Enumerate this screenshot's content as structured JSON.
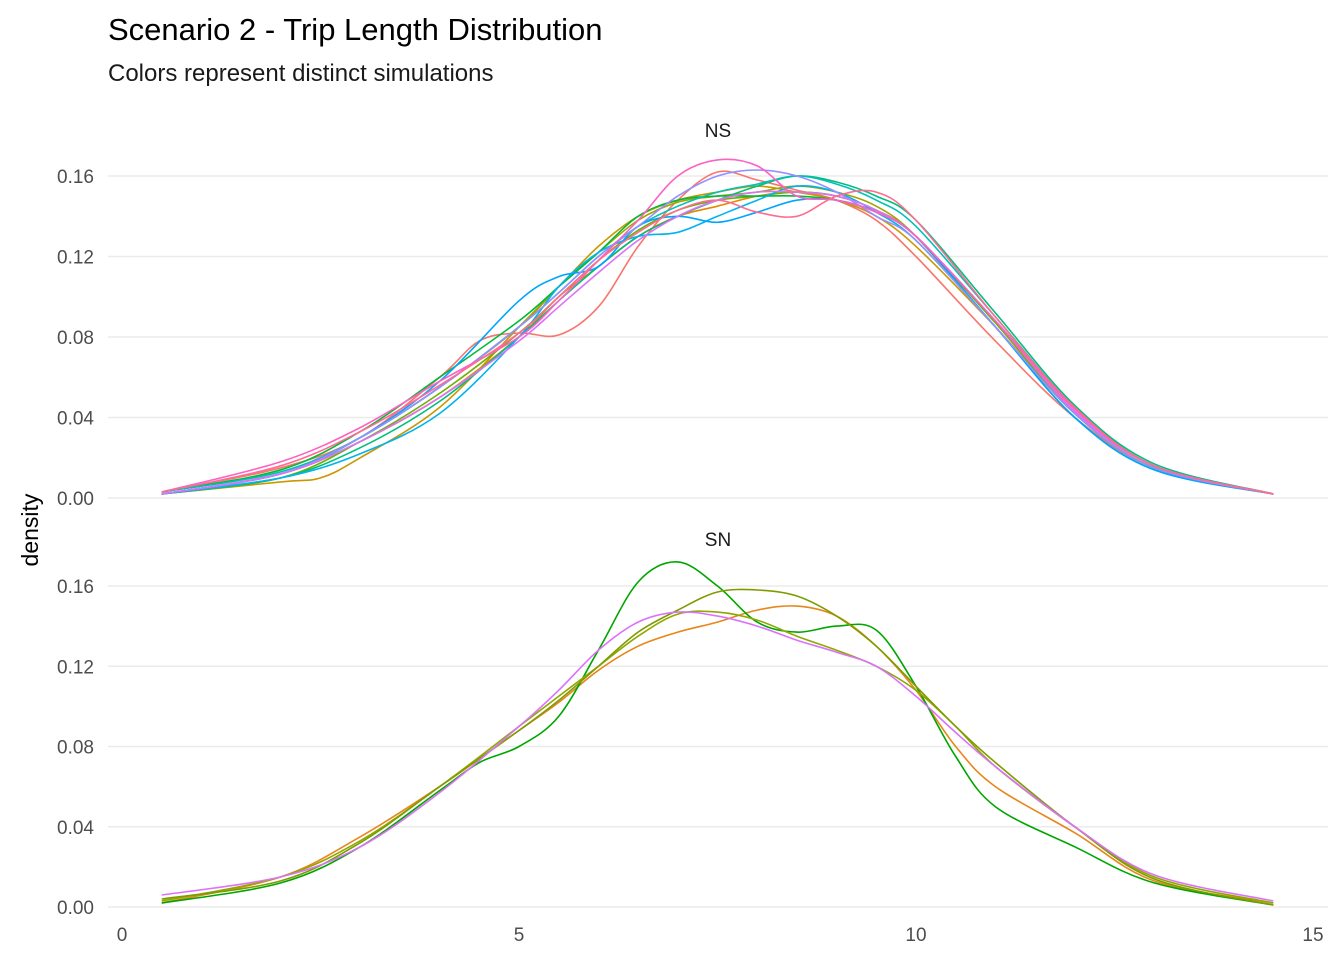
{
  "title": "Scenario 2 - Trip Length Distribution",
  "subtitle": "Colors represent distinct simulations",
  "chart_data": {
    "type": "line",
    "title": "Scenario 2 - Trip Length Distribution",
    "subtitle": "Colors represent distinct simulations",
    "xlabel": "",
    "ylabel": "density",
    "xlim": [
      0,
      15
    ],
    "x_ticks": [
      "0",
      "5",
      "10",
      "15"
    ],
    "y_ticks": [
      "0.00",
      "0.04",
      "0.08",
      "0.12",
      "0.16"
    ],
    "ylim": [
      0,
      0.17
    ],
    "grid": "horizontal",
    "legend": "none",
    "panels": [
      {
        "label": "NS",
        "series": [
          {
            "color": "#F8766D",
            "x": [
              0.5,
              2,
              3,
              4,
              4.5,
              5,
              5.5,
              6,
              6.5,
              7,
              7.5,
              8,
              8.5,
              9,
              9.5,
              10,
              11,
              12,
              13,
              14.5
            ],
            "y": [
              0.003,
              0.015,
              0.03,
              0.06,
              0.078,
              0.082,
              0.081,
              0.095,
              0.125,
              0.148,
              0.162,
              0.158,
              0.153,
              0.148,
              0.138,
              0.12,
              0.078,
              0.04,
              0.015,
              0.002
            ]
          },
          {
            "color": "#E58700",
            "x": [
              0.5,
              2,
              3,
              4,
              5,
              5.5,
              6,
              6.5,
              7,
              7.5,
              8,
              8.5,
              9,
              9.5,
              10,
              11,
              12,
              13,
              14.5
            ],
            "y": [
              0.002,
              0.012,
              0.028,
              0.05,
              0.08,
              0.1,
              0.115,
              0.13,
              0.14,
              0.145,
              0.15,
              0.152,
              0.15,
              0.143,
              0.13,
              0.085,
              0.042,
              0.015,
              0.002
            ]
          },
          {
            "color": "#C99800",
            "x": [
              0.5,
              2,
              2.5,
              3,
              4,
              5,
              5.5,
              6,
              6.5,
              7,
              7.5,
              8,
              8.5,
              9,
              9.5,
              10,
              11,
              12,
              13,
              14.5
            ],
            "y": [
              0.002,
              0.008,
              0.01,
              0.02,
              0.045,
              0.085,
              0.105,
              0.125,
              0.14,
              0.148,
              0.152,
              0.155,
              0.152,
              0.148,
              0.14,
              0.125,
              0.085,
              0.042,
              0.015,
              0.002
            ]
          },
          {
            "color": "#A3A500",
            "x": [
              0.5,
              2,
              3,
              4,
              5,
              5.5,
              6,
              6.5,
              7,
              7.5,
              8,
              8.5,
              9,
              9.5,
              10,
              11,
              12,
              13,
              14.5
            ],
            "y": [
              0.002,
              0.012,
              0.03,
              0.055,
              0.085,
              0.105,
              0.122,
              0.138,
              0.147,
              0.15,
              0.152,
              0.155,
              0.152,
              0.145,
              0.13,
              0.085,
              0.042,
              0.015,
              0.002
            ]
          },
          {
            "color": "#6BB100",
            "x": [
              0.5,
              2,
              3,
              4,
              5,
              5.5,
              6,
              6.5,
              7,
              7.5,
              8,
              8.5,
              9,
              9.5,
              10,
              11,
              12,
              13,
              14.5
            ],
            "y": [
              0.002,
              0.01,
              0.028,
              0.052,
              0.082,
              0.1,
              0.118,
              0.133,
              0.143,
              0.148,
              0.15,
              0.152,
              0.15,
              0.143,
              0.13,
              0.087,
              0.042,
              0.015,
              0.002
            ]
          },
          {
            "color": "#00BA38",
            "x": [
              0.5,
              2,
              3,
              4,
              5,
              5.5,
              6,
              6.5,
              7,
              7.5,
              8,
              8.5,
              9,
              9.5,
              10,
              11,
              12,
              13,
              14.5
            ],
            "y": [
              0.003,
              0.014,
              0.033,
              0.06,
              0.088,
              0.105,
              0.122,
              0.14,
              0.148,
              0.15,
              0.15,
              0.15,
              0.148,
              0.142,
              0.13,
              0.088,
              0.045,
              0.016,
              0.002
            ]
          },
          {
            "color": "#00BF7D",
            "x": [
              0.5,
              2,
              3,
              4,
              5,
              5.5,
              6,
              6.5,
              7,
              7.5,
              8,
              8.5,
              9,
              9.5,
              10,
              11,
              12,
              13,
              14.5
            ],
            "y": [
              0.002,
              0.01,
              0.025,
              0.048,
              0.08,
              0.098,
              0.115,
              0.13,
              0.14,
              0.148,
              0.155,
              0.16,
              0.157,
              0.15,
              0.138,
              0.092,
              0.046,
              0.017,
              0.002
            ]
          },
          {
            "color": "#00C0B8",
            "x": [
              0.5,
              2,
              3,
              4,
              5,
              5.5,
              6,
              6.5,
              7,
              7.5,
              8,
              8.5,
              9,
              9.5,
              10,
              11,
              12,
              13,
              14.5
            ],
            "y": [
              0.003,
              0.013,
              0.03,
              0.055,
              0.085,
              0.102,
              0.12,
              0.135,
              0.145,
              0.152,
              0.156,
              0.16,
              0.156,
              0.148,
              0.135,
              0.09,
              0.045,
              0.016,
              0.002
            ]
          },
          {
            "color": "#00B4EF",
            "x": [
              0.5,
              2,
              3,
              4,
              5,
              5.5,
              6,
              6.5,
              7,
              7.5,
              8,
              8.5,
              9,
              9.5,
              10,
              11,
              12,
              13,
              14.5
            ],
            "y": [
              0.002,
              0.01,
              0.022,
              0.042,
              0.08,
              0.105,
              0.122,
              0.13,
              0.132,
              0.14,
              0.148,
              0.155,
              0.152,
              0.142,
              0.128,
              0.085,
              0.04,
              0.014,
              0.002
            ]
          },
          {
            "color": "#00A5FF",
            "x": [
              0.5,
              2,
              3,
              4,
              5,
              5.5,
              6,
              6.5,
              7,
              7.5,
              8,
              8.5,
              9,
              9.5,
              10,
              11,
              12,
              13,
              14.5
            ],
            "y": [
              0.002,
              0.012,
              0.03,
              0.058,
              0.098,
              0.11,
              0.115,
              0.135,
              0.14,
              0.137,
              0.142,
              0.148,
              0.148,
              0.142,
              0.13,
              0.085,
              0.04,
              0.014,
              0.002
            ]
          },
          {
            "color": "#9590FF",
            "x": [
              0.5,
              2,
              3,
              4,
              5,
              5.5,
              6,
              6.5,
              7,
              7.5,
              8,
              8.5,
              9,
              9.5,
              10,
              11,
              12,
              13,
              14.5
            ],
            "y": [
              0.002,
              0.012,
              0.03,
              0.055,
              0.085,
              0.102,
              0.12,
              0.135,
              0.15,
              0.16,
              0.163,
              0.16,
              0.152,
              0.14,
              0.128,
              0.085,
              0.042,
              0.015,
              0.002
            ]
          },
          {
            "color": "#DC71FA",
            "x": [
              0.5,
              2,
              3,
              4,
              5,
              5.5,
              6,
              6.5,
              7,
              7.5,
              8,
              8.5,
              9,
              9.5,
              10,
              11,
              12,
              13,
              14.5
            ],
            "y": [
              0.002,
              0.012,
              0.028,
              0.05,
              0.078,
              0.095,
              0.112,
              0.128,
              0.14,
              0.148,
              0.152,
              0.152,
              0.15,
              0.143,
              0.13,
              0.088,
              0.043,
              0.016,
              0.002
            ]
          },
          {
            "color": "#FF61C3",
            "x": [
              0.5,
              2,
              3,
              4,
              5,
              5.5,
              6,
              6.5,
              7,
              7.5,
              8,
              8.5,
              9,
              9.5,
              10,
              11,
              12,
              13,
              14.5
            ],
            "y": [
              0.003,
              0.018,
              0.035,
              0.058,
              0.08,
              0.098,
              0.118,
              0.138,
              0.16,
              0.168,
              0.165,
              0.15,
              0.148,
              0.142,
              0.13,
              0.088,
              0.044,
              0.016,
              0.002
            ]
          },
          {
            "color": "#FF6C91",
            "x": [
              0.5,
              2,
              3,
              4,
              5,
              5.5,
              6,
              6.5,
              7,
              7.5,
              8,
              8.5,
              9,
              9.5,
              10,
              11,
              12,
              13,
              14.5
            ],
            "y": [
              0.003,
              0.016,
              0.033,
              0.056,
              0.082,
              0.1,
              0.118,
              0.132,
              0.143,
              0.148,
              0.142,
              0.14,
              0.15,
              0.152,
              0.138,
              0.09,
              0.045,
              0.016,
              0.002
            ]
          }
        ]
      },
      {
        "label": "SN",
        "series": [
          {
            "color": "#E7861B",
            "x": [
              0.5,
              2,
              3,
              4,
              5,
              5.5,
              6,
              6.5,
              7,
              7.5,
              8,
              8.5,
              9,
              9.5,
              10,
              10.5,
              11,
              12,
              13,
              14.5
            ],
            "y": [
              0.002,
              0.015,
              0.035,
              0.06,
              0.088,
              0.102,
              0.118,
              0.13,
              0.137,
              0.142,
              0.148,
              0.15,
              0.145,
              0.13,
              0.108,
              0.08,
              0.06,
              0.037,
              0.013,
              0.002
            ]
          },
          {
            "color": "#00A600",
            "x": [
              0.5,
              2,
              3,
              4,
              4.5,
              5,
              5.5,
              6,
              6.5,
              7,
              7.5,
              8,
              8.5,
              9,
              9.5,
              10,
              10.5,
              11,
              12,
              13,
              14.5
            ],
            "y": [
              0.002,
              0.012,
              0.03,
              0.058,
              0.072,
              0.08,
              0.095,
              0.128,
              0.162,
              0.172,
              0.16,
              0.142,
              0.137,
              0.14,
              0.138,
              0.11,
              0.075,
              0.05,
              0.03,
              0.012,
              0.001
            ]
          },
          {
            "color": "#8FA800",
            "x": [
              0.5,
              2,
              3,
              4,
              5,
              5.5,
              6,
              6.5,
              7,
              7.5,
              8,
              8.5,
              9,
              9.5,
              10,
              10.5,
              11,
              12,
              13,
              14.5
            ],
            "y": [
              0.003,
              0.015,
              0.033,
              0.06,
              0.09,
              0.105,
              0.12,
              0.135,
              0.146,
              0.147,
              0.143,
              0.135,
              0.128,
              0.12,
              0.108,
              0.09,
              0.07,
              0.04,
              0.015,
              0.002
            ]
          },
          {
            "color": "#7E9C00",
            "x": [
              0.5,
              2,
              3,
              4,
              5,
              5.5,
              6,
              6.5,
              7,
              7.5,
              8,
              8.5,
              9,
              9.5,
              10,
              10.5,
              11,
              12,
              13,
              14.5
            ],
            "y": [
              0.004,
              0.013,
              0.032,
              0.06,
              0.088,
              0.103,
              0.12,
              0.137,
              0.148,
              0.157,
              0.158,
              0.155,
              0.145,
              0.13,
              0.11,
              0.09,
              0.072,
              0.04,
              0.014,
              0.001
            ]
          },
          {
            "color": "#DC71FA",
            "x": [
              0.5,
              2,
              3,
              4,
              5,
              5.5,
              6,
              6.5,
              7,
              7.5,
              8,
              8.5,
              9,
              9.5,
              10,
              10.5,
              11,
              12,
              13,
              14.5
            ],
            "y": [
              0.006,
              0.015,
              0.03,
              0.057,
              0.09,
              0.108,
              0.128,
              0.142,
              0.147,
              0.145,
              0.14,
              0.133,
              0.127,
              0.12,
              0.105,
              0.087,
              0.07,
              0.04,
              0.016,
              0.003
            ]
          }
        ]
      }
    ]
  }
}
